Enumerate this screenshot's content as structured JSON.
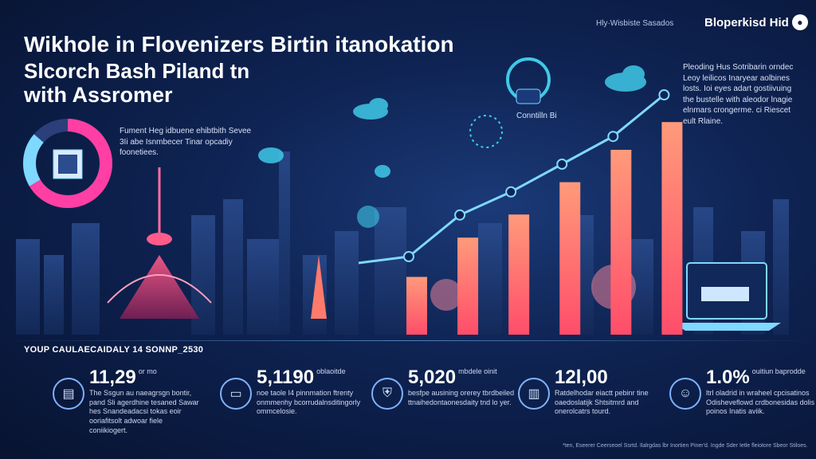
{
  "header": {
    "title_lines": [
      "Wikhole in Flovenizers Birtin itanokation",
      "Slcorch Bash Piland tn",
      "with Assromer"
    ],
    "top_label": "Hly·Wisbiste Sasados",
    "brand": "Bloperkisd Hid",
    "brand_logo_icon": "globe-icon"
  },
  "intro_text": "Fument Heg idbuene ehibtbith Sevee 3Ii abe Isnmbecer Tinar opcadiy foonetiees.",
  "side_text": "Pleoding Hus Sotribarin orndec Leoy leilicos Inaryear aolbines losts. Ioi eyes adart gostiivuing the bustelle with aleodor lnagie elnmars crongerme. ci Riescet eult Rlaine.",
  "chart_label": "Conntilln Bi",
  "date_line": "YOUP CAULAECAIDALY 14 SONNP_2530",
  "stats": [
    {
      "icon": "book-icon",
      "number": "11,29",
      "unit": "or mo",
      "desc": "The Ssgun au naeagrsgn bontir, pand Sli agerdhine tesaned Sawar hes Snandeadacsi tokas eoir ooriafitsolt adwoar fiele coniikiogert."
    },
    {
      "icon": "laptop-icon",
      "number": "5,1190",
      "unit": "oblaoitde",
      "desc": "noe taole I4 pinnmation ftrenty onmmenhy bcorrudalnsditingorly ommcelosie."
    },
    {
      "icon": "shield-icon",
      "number": "5,020",
      "unit": "mbdele oinit",
      "desc": "besfpe ausining orerey tbrdbeiled ttnaihedontaonesdaity tnd lo yer."
    },
    {
      "icon": "folder-icon",
      "number": "12l,00",
      "unit": "",
      "desc": "Ratdelhodar eiactt pebinr tine oaedoslatijk Shtsitmrd and onerolcatrs tourd."
    },
    {
      "icon": "person-icon",
      "number": "1.0%",
      "unit": "ouitiun baprodde",
      "desc": "ltrl oladrid in wraheel cpcisatinos Odisheveflowd crdbonesidas dolis poinos Inatis aviik."
    }
  ],
  "footnote": "*ten, Eseerer Ceerseoel Ssrtd. Ilalrgdas lbr Inortien Piner'd. Ingde Sder Ietle fleiotore Sbeor Stiloes.",
  "chart_data": {
    "type": "bar",
    "categories": [
      "",
      "",
      "",
      "",
      "",
      ""
    ],
    "values": [
      25,
      42,
      52,
      66,
      80,
      92
    ],
    "title": "",
    "xlabel": "",
    "ylabel": "",
    "ylim": [
      0,
      100
    ],
    "grid": false,
    "line_series": [
      20,
      38,
      48,
      60,
      72,
      90
    ],
    "colors": {
      "bar_top": "#ff8a6b",
      "bar_bottom": "#ff4d5e",
      "line": "#7fd8ff",
      "accent": "#ff3fa4"
    }
  }
}
